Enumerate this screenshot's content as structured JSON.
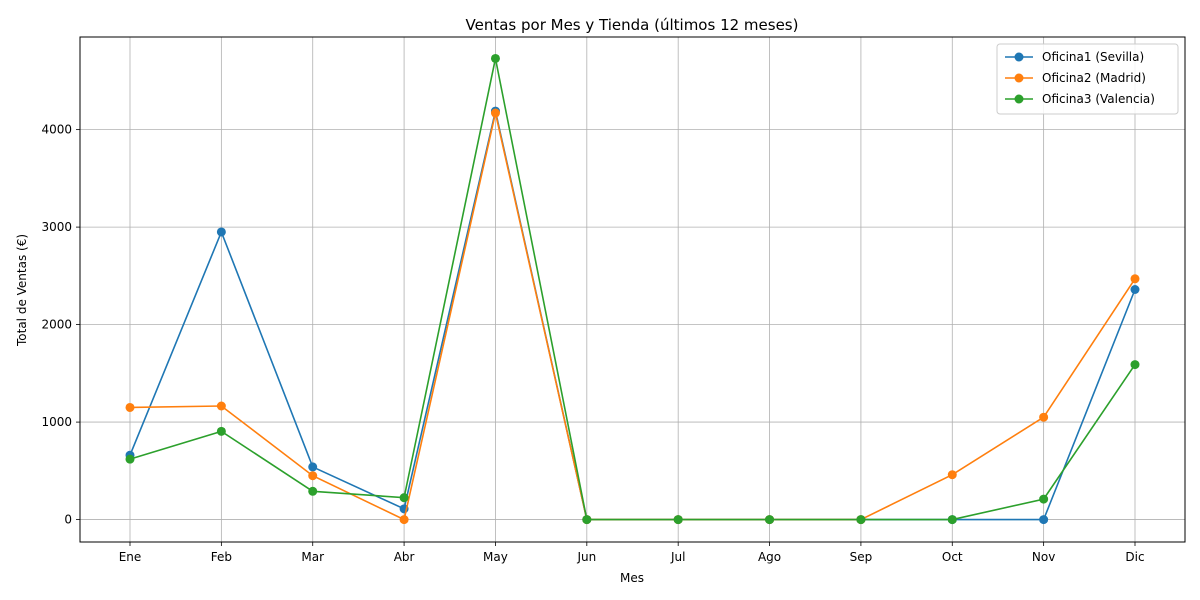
{
  "chart_data": {
    "type": "line",
    "title": "Ventas por Mes y Tienda (últimos 12 meses)",
    "xlabel": "Mes",
    "ylabel": "Total de Ventas (€)",
    "categories": [
      "Ene",
      "Feb",
      "Mar",
      "Abr",
      "May",
      "Jun",
      "Jul",
      "Ago",
      "Sep",
      "Oct",
      "Nov",
      "Dic"
    ],
    "ylim": [
      -230,
      4950
    ],
    "yticks": [
      0,
      1000,
      2000,
      3000,
      4000
    ],
    "grid": true,
    "legend_position": "top-right",
    "series": [
      {
        "name": "Oficina1 (Sevilla)",
        "color": "#1f77b4",
        "values": [
          660,
          2950,
          540,
          110,
          4190,
          0,
          0,
          0,
          0,
          0,
          0,
          2360
        ]
      },
      {
        "name": "Oficina2 (Madrid)",
        "color": "#ff7f0e",
        "values": [
          1150,
          1165,
          450,
          0,
          4170,
          0,
          0,
          0,
          0,
          460,
          1050,
          2470
        ]
      },
      {
        "name": "Oficina3 (Valencia)",
        "color": "#2ca02c",
        "values": [
          620,
          905,
          290,
          225,
          4730,
          0,
          0,
          0,
          0,
          0,
          210,
          1590
        ]
      }
    ]
  }
}
